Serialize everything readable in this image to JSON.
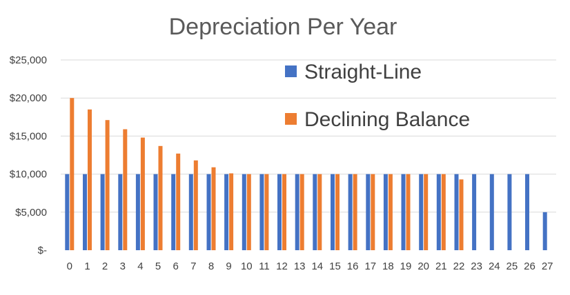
{
  "chart_data": {
    "type": "bar",
    "title": "Depreciation Per Year",
    "xlabel": "",
    "ylabel": "",
    "ylim": [
      0,
      25000
    ],
    "y_ticks": [
      0,
      5000,
      10000,
      15000,
      20000,
      25000
    ],
    "y_tick_labels": [
      "$-",
      "$5,000",
      "$10,000",
      "$15,000",
      "$20,000",
      "$25,000"
    ],
    "grid": true,
    "legend_position": "top-right (inside plot)",
    "categories": [
      "0",
      "1",
      "2",
      "3",
      "4",
      "5",
      "6",
      "7",
      "8",
      "9",
      "10",
      "11",
      "12",
      "13",
      "14",
      "15",
      "16",
      "17",
      "18",
      "19",
      "20",
      "21",
      "22",
      "23",
      "24",
      "25",
      "26",
      "27"
    ],
    "series": [
      {
        "name": "Straight-Line",
        "color": "#4472c4",
        "values": [
          10000,
          10000,
          10000,
          10000,
          10000,
          10000,
          10000,
          10000,
          10000,
          10000,
          10000,
          10000,
          10000,
          10000,
          10000,
          10000,
          10000,
          10000,
          10000,
          10000,
          10000,
          10000,
          10000,
          10000,
          10000,
          10000,
          10000,
          5000
        ]
      },
      {
        "name": "Declining Balance",
        "color": "#ed7d31",
        "values": [
          20000,
          18500,
          17100,
          15900,
          14800,
          13700,
          12700,
          11800,
          10900,
          10100,
          10000,
          10000,
          10000,
          10000,
          10000,
          10000,
          10000,
          10000,
          10000,
          10000,
          10000,
          10000,
          9300,
          null,
          null,
          null,
          null,
          null
        ]
      }
    ]
  }
}
